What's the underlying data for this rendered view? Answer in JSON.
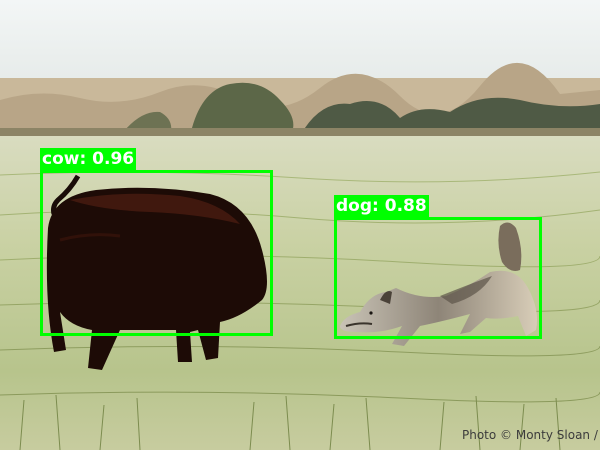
{
  "detections": [
    {
      "label": "cow: 0.96",
      "class": "cow",
      "score": 0.96
    },
    {
      "label": "dog: 0.88",
      "class": "dog",
      "score": 0.88
    }
  ],
  "box_color": "#00ff00",
  "label_text_color": "#ffffff",
  "photo_credit": "Photo © Monty Sloan / W"
}
